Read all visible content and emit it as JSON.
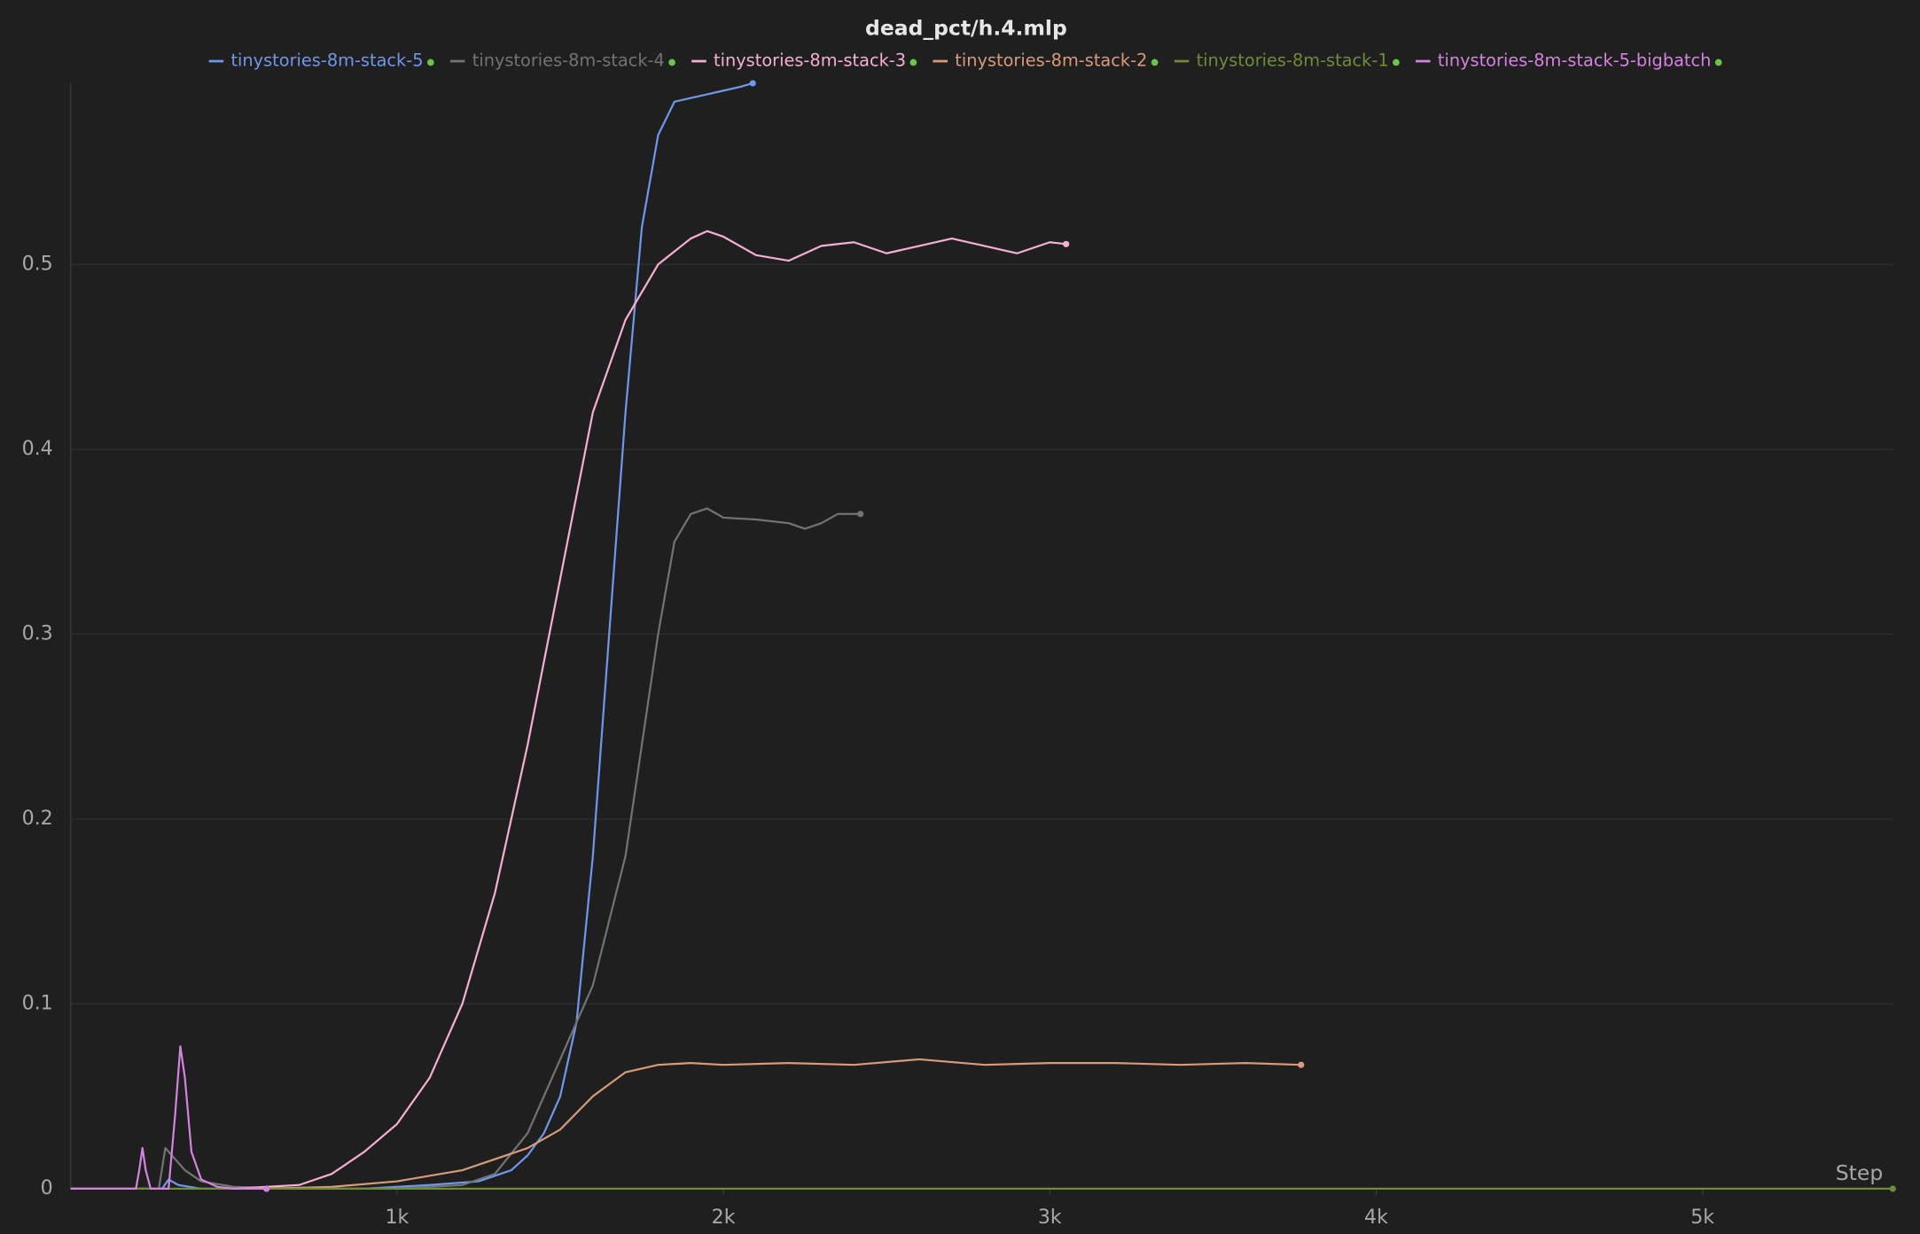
{
  "chart_data": {
    "type": "line",
    "title": "dead_pct/h.4.mlp",
    "x_label": "Step",
    "xlim": [
      0,
      5583
    ],
    "ylim": [
      0,
      0.598
    ],
    "xticks": [
      {
        "value": 1000,
        "label": "1k"
      },
      {
        "value": 2000,
        "label": "2k"
      },
      {
        "value": 3000,
        "label": "3k"
      },
      {
        "value": 4000,
        "label": "4k"
      },
      {
        "value": 5000,
        "label": "5k"
      }
    ],
    "yticks": [
      0,
      0.1,
      0.2,
      0.3,
      0.4,
      0.5
    ],
    "grid": true,
    "legend": "top",
    "series": [
      {
        "name": "tinystories-8m-stack-5",
        "color": "#6f97ea",
        "x": [
          0,
          280,
          300,
          330,
          400,
          600,
          900,
          1100,
          1250,
          1350,
          1400,
          1450,
          1500,
          1550,
          1600,
          1650,
          1700,
          1750,
          1800,
          1850,
          1900,
          1950,
          2000,
          2050,
          2090
        ],
        "values": [
          0,
          0,
          0.005,
          0.002,
          0,
          0,
          0,
          0.002,
          0.004,
          0.01,
          0.018,
          0.03,
          0.05,
          0.09,
          0.18,
          0.3,
          0.42,
          0.52,
          0.57,
          0.588,
          0.59,
          0.592,
          0.594,
          0.596,
          0.598
        ]
      },
      {
        "name": "tinystories-8m-stack-4",
        "color": "#737373",
        "x": [
          0,
          270,
          290,
          310,
          350,
          400,
          500,
          700,
          1000,
          1200,
          1300,
          1400,
          1500,
          1600,
          1700,
          1750,
          1800,
          1850,
          1900,
          1950,
          2000,
          2100,
          2200,
          2250,
          2300,
          2350,
          2420
        ],
        "values": [
          0,
          0,
          0.022,
          0.018,
          0.01,
          0.004,
          0.001,
          0,
          0,
          0.002,
          0.008,
          0.03,
          0.07,
          0.11,
          0.18,
          0.24,
          0.3,
          0.35,
          0.365,
          0.368,
          0.363,
          0.362,
          0.36,
          0.357,
          0.36,
          0.365,
          0.365
        ]
      },
      {
        "name": "tinystories-8m-stack-3",
        "color": "#f7aed3",
        "x": [
          500,
          700,
          800,
          900,
          1000,
          1100,
          1200,
          1300,
          1400,
          1500,
          1600,
          1700,
          1800,
          1900,
          1950,
          2000,
          2100,
          2200,
          2300,
          2400,
          2500,
          2600,
          2700,
          2800,
          2900,
          3000,
          3050
        ],
        "values": [
          0,
          0.002,
          0.008,
          0.02,
          0.035,
          0.06,
          0.1,
          0.16,
          0.24,
          0.33,
          0.42,
          0.47,
          0.5,
          0.514,
          0.518,
          0.515,
          0.505,
          0.502,
          0.51,
          0.512,
          0.506,
          0.51,
          0.514,
          0.51,
          0.506,
          0.512,
          0.511
        ]
      },
      {
        "name": "tinystories-8m-stack-2",
        "color": "#d99a7a",
        "x": [
          600,
          800,
          1000,
          1200,
          1300,
          1400,
          1500,
          1600,
          1700,
          1800,
          1900,
          2000,
          2200,
          2400,
          2600,
          2800,
          3000,
          3200,
          3400,
          3600,
          3770
        ],
        "values": [
          0,
          0.001,
          0.004,
          0.01,
          0.016,
          0.022,
          0.032,
          0.05,
          0.063,
          0.067,
          0.068,
          0.067,
          0.068,
          0.067,
          0.07,
          0.067,
          0.068,
          0.068,
          0.067,
          0.068,
          0.067
        ]
      },
      {
        "name": "tinystories-8m-stack-1",
        "color": "#6f8c3a",
        "x": [
          0,
          5583
        ],
        "values": [
          0,
          0
        ]
      },
      {
        "name": "tinystories-8m-stack-5-bigbatch",
        "color": "#d583e0",
        "x": [
          0,
          200,
          210,
          220,
          230,
          245,
          300,
          320,
          336,
          350,
          370,
          400,
          450,
          500,
          600
        ],
        "values": [
          0,
          0,
          0.01,
          0.022,
          0.01,
          0,
          0,
          0.04,
          0.077,
          0.06,
          0.02,
          0.005,
          0.001,
          0,
          0
        ]
      }
    ]
  }
}
